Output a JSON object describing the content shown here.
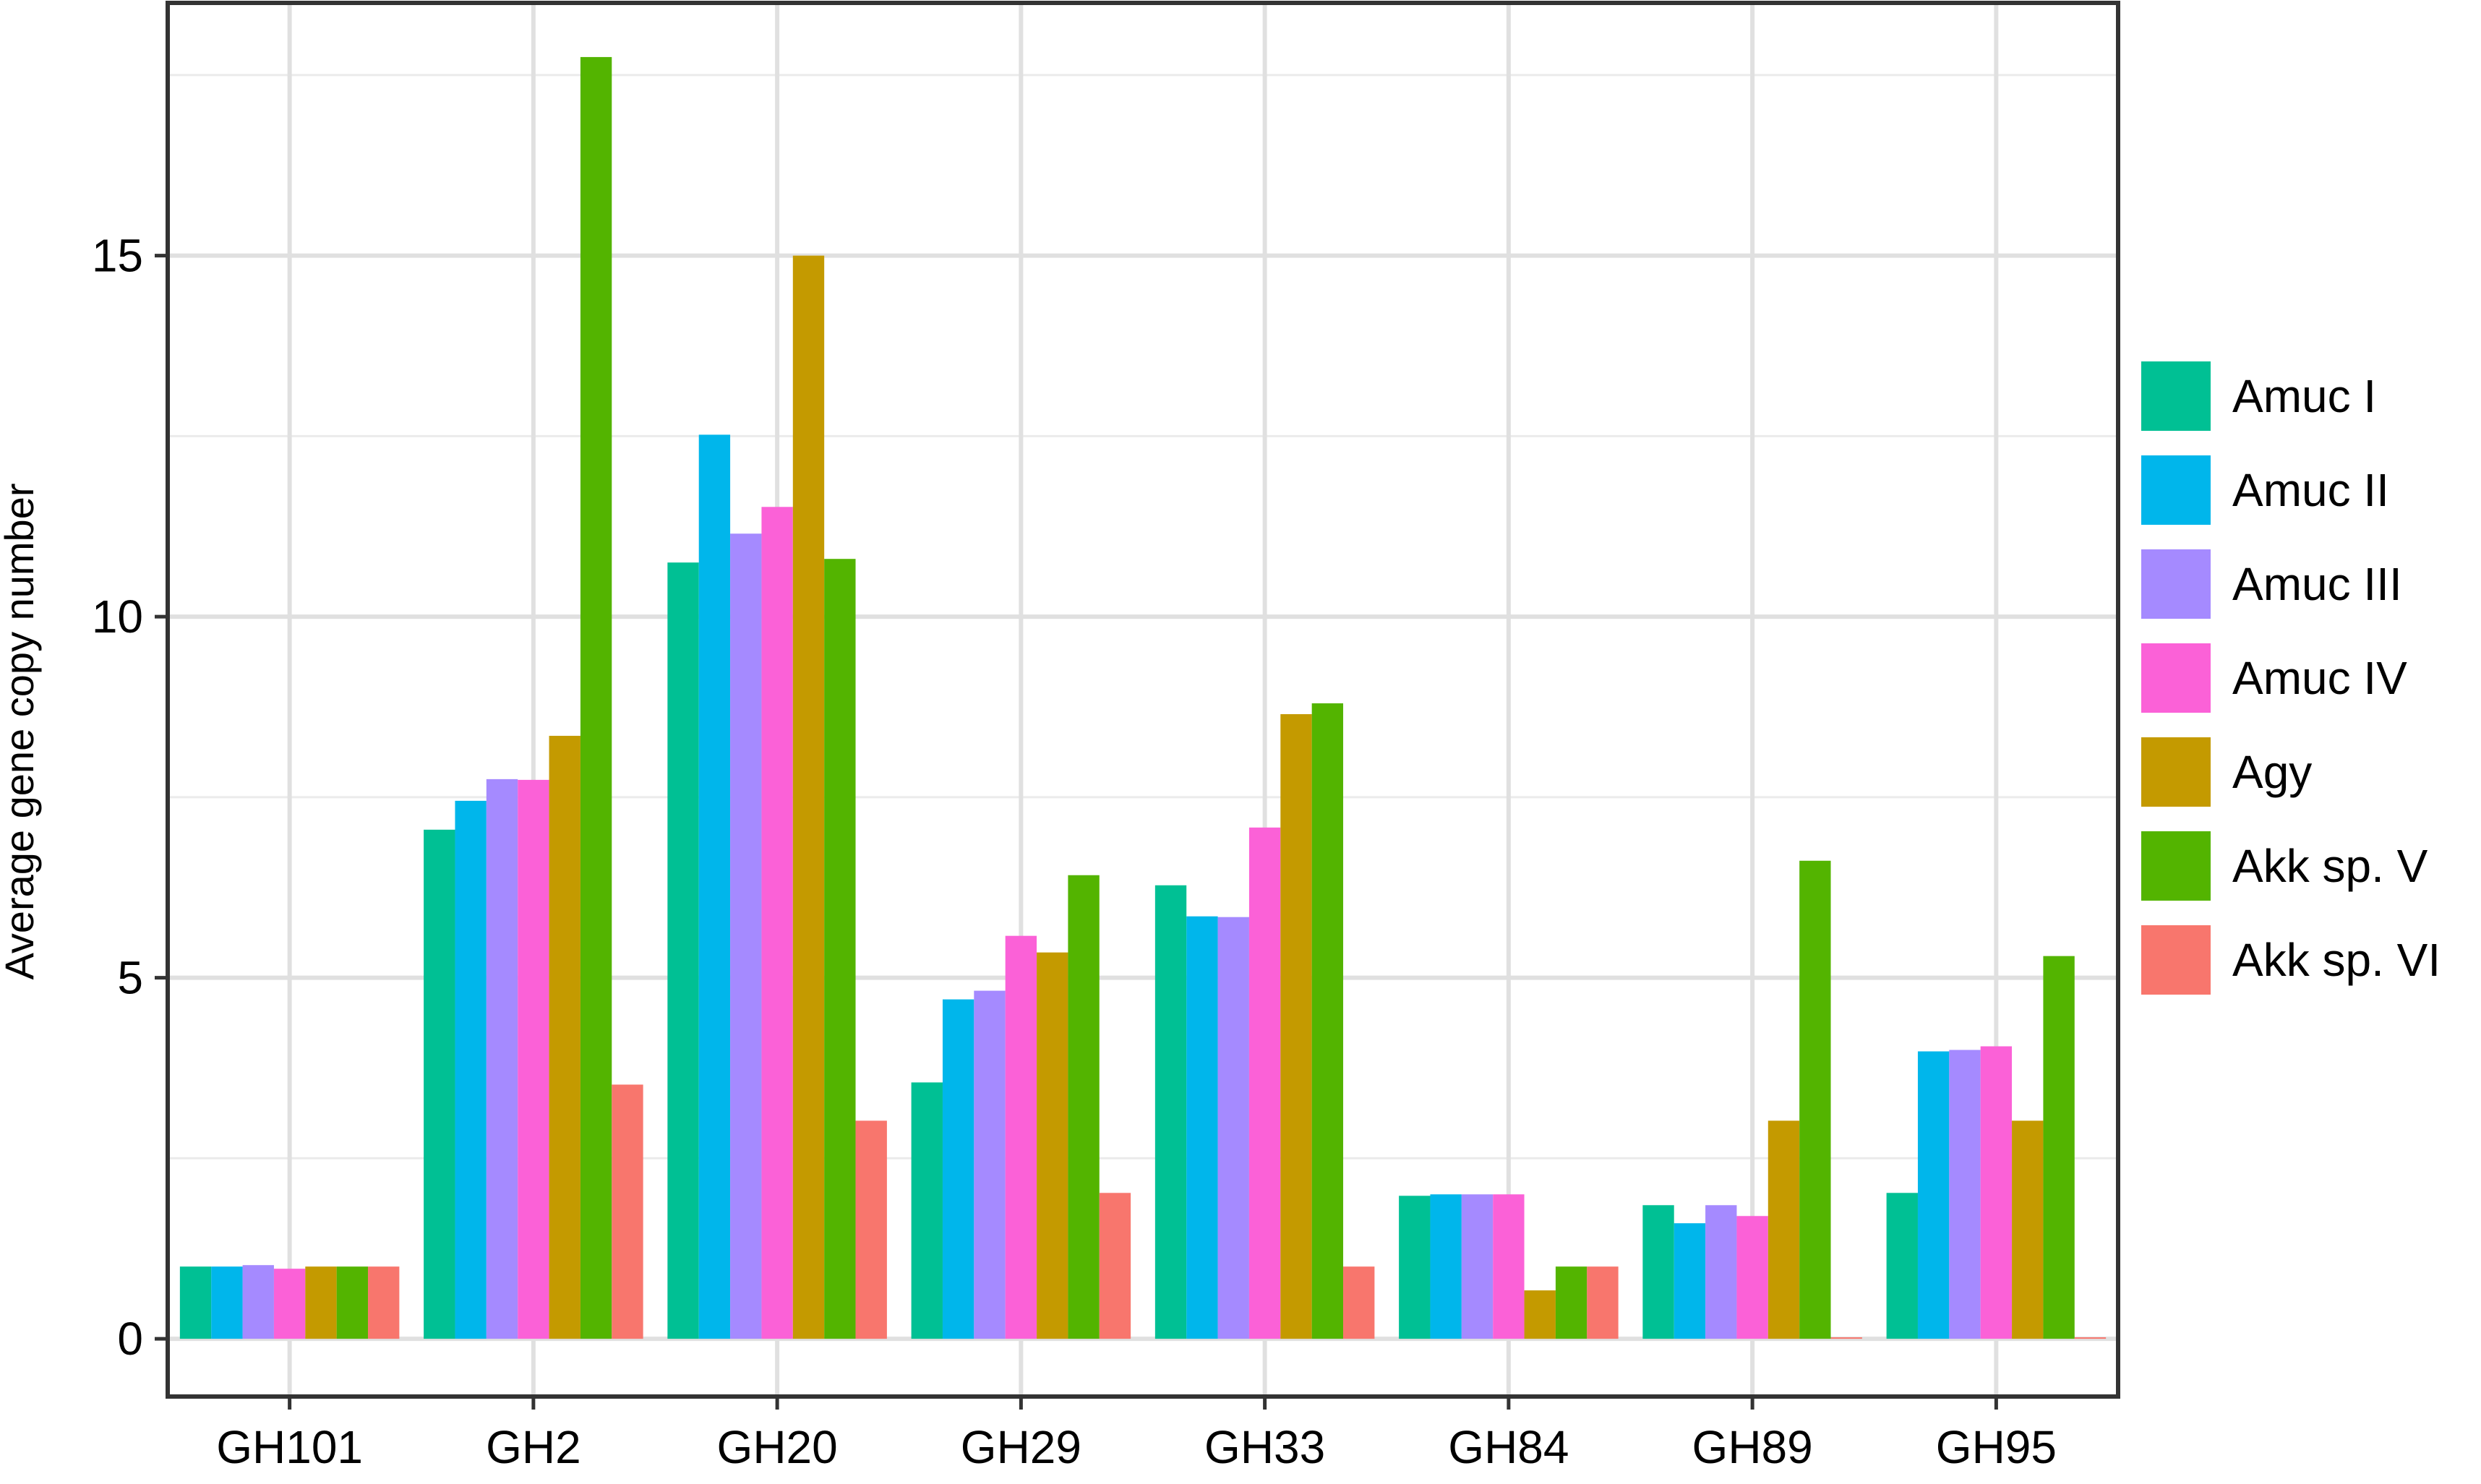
{
  "chart_data": {
    "type": "bar",
    "title": "",
    "xlabel": "",
    "ylabel": "Average gene copy number",
    "ylim": [
      -0.8,
      18.5
    ],
    "yticks": [
      0,
      5,
      10,
      15
    ],
    "grid": true,
    "legend_position": "right",
    "categories": [
      "GH101",
      "GH2",
      "GH20",
      "GH29",
      "GH33",
      "GH84",
      "GH89",
      "GH95"
    ],
    "series": [
      {
        "name": "Amuc I",
        "color": "#00C094",
        "values": [
          1.0,
          7.05,
          10.75,
          3.55,
          6.28,
          1.98,
          1.85,
          2.02
        ]
      },
      {
        "name": "Amuc II",
        "color": "#00B6EB",
        "values": [
          1.0,
          7.45,
          12.52,
          4.7,
          5.85,
          2.0,
          1.6,
          3.98
        ]
      },
      {
        "name": "Amuc III",
        "color": "#A58AFF",
        "values": [
          1.02,
          7.75,
          11.15,
          4.82,
          5.84,
          2.0,
          1.85,
          4.0
        ]
      },
      {
        "name": "Amuc IV",
        "color": "#FB61D7",
        "values": [
          0.97,
          7.74,
          11.52,
          5.58,
          7.08,
          2.0,
          1.7,
          4.05
        ]
      },
      {
        "name": "Agy",
        "color": "#C49A00",
        "values": [
          1.0,
          8.35,
          15.0,
          5.35,
          8.65,
          0.67,
          3.02,
          3.02
        ]
      },
      {
        "name": "Akk sp. V",
        "color": "#53B400",
        "values": [
          1.0,
          17.75,
          10.8,
          6.42,
          8.8,
          1.0,
          6.62,
          5.3
        ]
      },
      {
        "name": "Akk sp. VI",
        "color": "#F8766D",
        "values": [
          1.0,
          3.52,
          3.02,
          2.02,
          1.0,
          1.0,
          0.02,
          0.02
        ]
      }
    ]
  }
}
